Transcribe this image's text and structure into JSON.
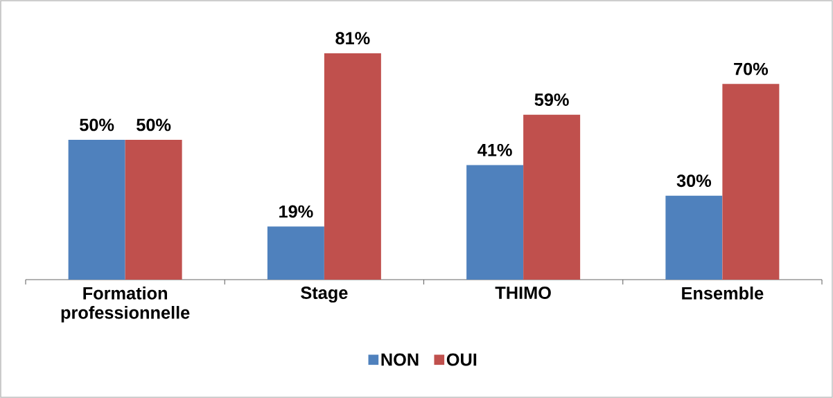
{
  "chart_data": {
    "type": "bar",
    "categories": [
      "Formation professionnelle",
      "Stage",
      "THIMO",
      "Ensemble"
    ],
    "series": [
      {
        "name": "NON",
        "color": "#4f81bd",
        "values": [
          50,
          19,
          41,
          30
        ],
        "value_labels": [
          "50%",
          "19%",
          "41%",
          "30%"
        ]
      },
      {
        "name": "OUI",
        "color": "#c0504d",
        "values": [
          50,
          81,
          59,
          70
        ],
        "value_labels": [
          "50%",
          "81%",
          "59%",
          "70%"
        ]
      }
    ],
    "legend": "bottom"
  }
}
